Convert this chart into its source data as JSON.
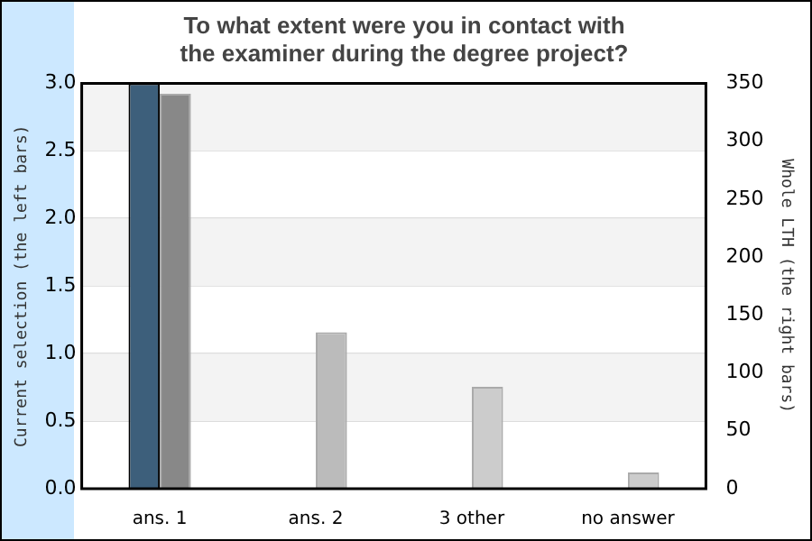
{
  "chart_data": {
    "type": "bar",
    "title": "To what extent were you in contact with\nthe examiner during the degree project?",
    "categories": [
      "ans. 1",
      "ans. 2",
      "3 other",
      "no answer"
    ],
    "series": [
      {
        "color": "#3d5f7b",
        "values": [
          3,
          0,
          0,
          0
        ]
      },
      {
        "colors": [
          "#888888",
          "#bbbbbb",
          "#cccccc",
          "#cccccc"
        ],
        "values": [
          341,
          135,
          88,
          14
        ],
        "axis": "y2"
      }
    ],
    "ylabel": "Current selection (the left bars)",
    "y2label": "Whole LTH (the right bars)",
    "ylim": [
      0,
      3
    ],
    "yticks": [
      {
        "value": 0,
        "label": "0.0"
      },
      {
        "value": 0.5,
        "label": "0.5"
      },
      {
        "value": 1,
        "label": "1.0"
      },
      {
        "value": 1.5,
        "label": "1.5"
      },
      {
        "value": 2,
        "label": "2.0"
      },
      {
        "value": 2.5,
        "label": "2.5"
      },
      {
        "value": 3,
        "label": "3.0"
      }
    ],
    "y2lim": [
      0,
      350
    ],
    "y2ticks": [
      0,
      50,
      100,
      150,
      200,
      250,
      300,
      350
    ],
    "grid": "y",
    "legend": false
  }
}
